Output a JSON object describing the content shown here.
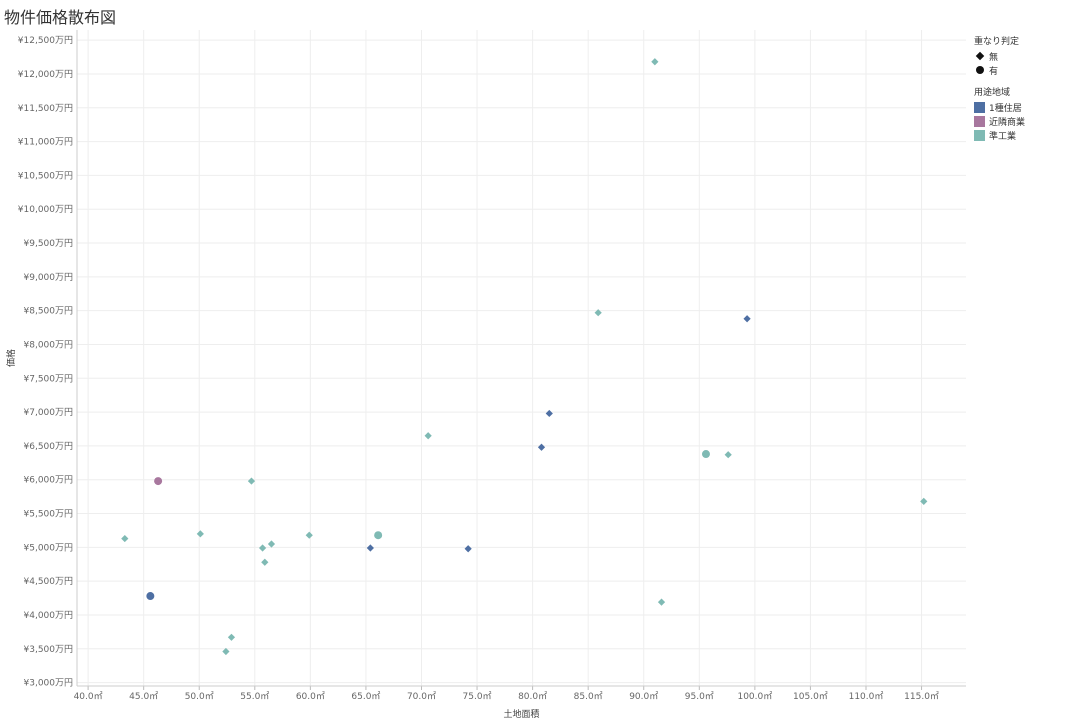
{
  "title": "物件価格散布図",
  "chart_data": {
    "type": "scatter",
    "xlabel": "土地面積",
    "ylabel": "価格",
    "xlim": [
      39,
      119
    ],
    "ylim": [
      2950,
      12650
    ],
    "x_ticks": [
      40,
      45,
      50,
      55,
      60,
      65,
      70,
      75,
      80,
      85,
      90,
      95,
      100,
      105,
      110,
      115
    ],
    "x_tick_labels": [
      "40.0㎡",
      "45.0㎡",
      "50.0㎡",
      "55.0㎡",
      "60.0㎡",
      "65.0㎡",
      "70.0㎡",
      "75.0㎡",
      "80.0㎡",
      "85.0㎡",
      "90.0㎡",
      "95.0㎡",
      "100.0㎡",
      "105.0㎡",
      "110.0㎡",
      "115.0㎡"
    ],
    "y_ticks": [
      3000,
      3500,
      4000,
      4500,
      5000,
      5500,
      6000,
      6500,
      7000,
      7500,
      8000,
      8500,
      9000,
      9500,
      10000,
      10500,
      11000,
      11500,
      12000,
      12500
    ],
    "y_tick_labels": [
      "¥3,000万円",
      "¥3,500万円",
      "¥4,000万円",
      "¥4,500万円",
      "¥5,000万円",
      "¥5,500万円",
      "¥6,000万円",
      "¥6,500万円",
      "¥7,000万円",
      "¥7,500万円",
      "¥8,000万円",
      "¥8,500万円",
      "¥9,000万円",
      "¥9,500万円",
      "¥10,000万円",
      "¥10,500万円",
      "¥11,000万円",
      "¥11,500万円",
      "¥12,000万円",
      "¥12,500万円"
    ],
    "grid": true,
    "legend_position": "right",
    "shape_legend": {
      "title": "重なり判定",
      "items": [
        {
          "label": "無",
          "shape": "diamond"
        },
        {
          "label": "有",
          "shape": "circle"
        }
      ]
    },
    "color_legend": {
      "title": "用途地域",
      "items": [
        {
          "label": "1種住居",
          "color": "#4e6fa3"
        },
        {
          "label": "近隣商業",
          "color": "#a8779e"
        },
        {
          "label": "準工業",
          "color": "#7fbab4"
        }
      ]
    },
    "points": [
      {
        "x": 91.0,
        "y": 12180,
        "zone": 2,
        "shape": "diamond"
      },
      {
        "x": 85.9,
        "y": 8470,
        "zone": 2,
        "shape": "diamond"
      },
      {
        "x": 99.3,
        "y": 8380,
        "zone": 0,
        "shape": "diamond"
      },
      {
        "x": 81.5,
        "y": 6980,
        "zone": 0,
        "shape": "diamond"
      },
      {
        "x": 70.6,
        "y": 6650,
        "zone": 2,
        "shape": "diamond"
      },
      {
        "x": 80.8,
        "y": 6480,
        "zone": 0,
        "shape": "diamond"
      },
      {
        "x": 95.6,
        "y": 6380,
        "zone": 2,
        "shape": "circle"
      },
      {
        "x": 97.6,
        "y": 6370,
        "zone": 2,
        "shape": "diamond"
      },
      {
        "x": 46.3,
        "y": 5980,
        "zone": 1,
        "shape": "circle"
      },
      {
        "x": 54.7,
        "y": 5980,
        "zone": 2,
        "shape": "diamond"
      },
      {
        "x": 115.2,
        "y": 5680,
        "zone": 2,
        "shape": "diamond"
      },
      {
        "x": 50.1,
        "y": 5200,
        "zone": 2,
        "shape": "diamond"
      },
      {
        "x": 59.9,
        "y": 5180,
        "zone": 2,
        "shape": "diamond"
      },
      {
        "x": 66.1,
        "y": 5180,
        "zone": 2,
        "shape": "circle"
      },
      {
        "x": 43.3,
        "y": 5130,
        "zone": 2,
        "shape": "diamond"
      },
      {
        "x": 56.5,
        "y": 5050,
        "zone": 2,
        "shape": "diamond"
      },
      {
        "x": 55.7,
        "y": 4990,
        "zone": 2,
        "shape": "diamond"
      },
      {
        "x": 65.4,
        "y": 4990,
        "zone": 0,
        "shape": "diamond"
      },
      {
        "x": 74.2,
        "y": 4980,
        "zone": 0,
        "shape": "diamond"
      },
      {
        "x": 55.9,
        "y": 4780,
        "zone": 2,
        "shape": "diamond"
      },
      {
        "x": 45.6,
        "y": 4280,
        "zone": 0,
        "shape": "circle"
      },
      {
        "x": 91.6,
        "y": 4190,
        "zone": 2,
        "shape": "diamond"
      },
      {
        "x": 52.9,
        "y": 3670,
        "zone": 2,
        "shape": "diamond"
      },
      {
        "x": 52.4,
        "y": 3460,
        "zone": 2,
        "shape": "diamond"
      }
    ]
  }
}
